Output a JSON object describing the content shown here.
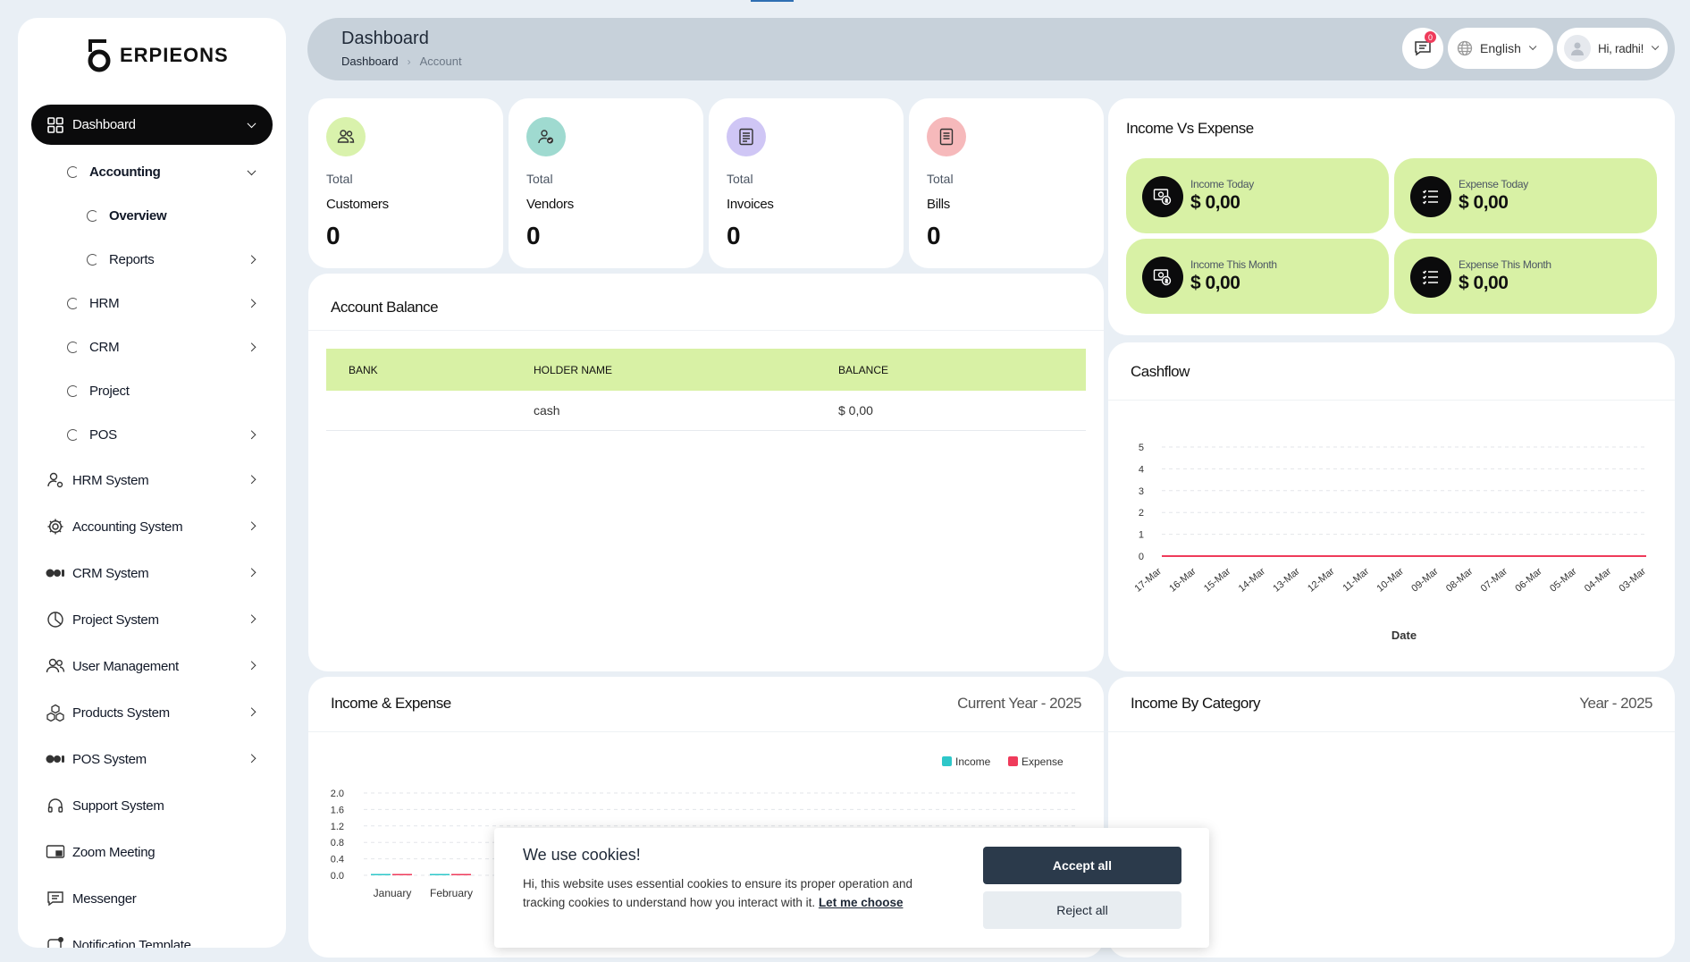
{
  "brand": {
    "name": "ERPIEONS"
  },
  "sidebar": {
    "items": [
      {
        "label": "Dashboard",
        "icon": "grid-icon",
        "active": true
      },
      {
        "label": "Accounting",
        "level": 1,
        "expanded": true
      },
      {
        "label": "Overview",
        "level": 2
      },
      {
        "label": "Reports",
        "level": 2
      },
      {
        "label": "HRM",
        "level": 1
      },
      {
        "label": "CRM",
        "level": 1
      },
      {
        "label": "Project",
        "level": 1
      },
      {
        "label": "POS",
        "level": 1
      },
      {
        "label": "HRM System",
        "icon": "user-gear-icon"
      },
      {
        "label": "Accounting System",
        "icon": "gear-icon"
      },
      {
        "label": "CRM System",
        "icon": "toggle-dots-icon"
      },
      {
        "label": "Project System",
        "icon": "pie-icon"
      },
      {
        "label": "User Management",
        "icon": "users-icon"
      },
      {
        "label": "Products System",
        "icon": "cubes-icon"
      },
      {
        "label": "POS System",
        "icon": "toggle-dots-icon"
      },
      {
        "label": "Support System",
        "icon": "headset-icon"
      },
      {
        "label": "Zoom Meeting",
        "icon": "monitor-icon"
      },
      {
        "label": "Messenger",
        "icon": "chat-icon"
      },
      {
        "label": "Notification Template",
        "icon": "notification-icon"
      }
    ]
  },
  "header": {
    "title": "Dashboard",
    "breadcrumb": [
      "Dashboard",
      "Account"
    ],
    "notifications": "0",
    "language": "English",
    "greeting": "Hi, radhi!"
  },
  "stats": [
    {
      "label": "Total",
      "name": "Customers",
      "value": "0",
      "color": "#d9f2ac"
    },
    {
      "label": "Total",
      "name": "Vendors",
      "value": "0",
      "color": "#9fdad0"
    },
    {
      "label": "Total",
      "name": "Invoices",
      "value": "0",
      "color": "#cfc6f5"
    },
    {
      "label": "Total",
      "name": "Bills",
      "value": "0",
      "color": "#f6b9bb"
    }
  ],
  "income_vs_expense": {
    "title": "Income Vs Expense",
    "tiles": [
      {
        "label": "Income Today",
        "value": "$ 0,00"
      },
      {
        "label": "Expense Today",
        "value": "$ 0,00"
      },
      {
        "label": "Income This Month",
        "value": "$ 0,00"
      },
      {
        "label": "Expense This Month",
        "value": "$ 0,00"
      }
    ]
  },
  "account_balance": {
    "title": "Account Balance",
    "columns": [
      "BANK",
      "HOLDER NAME",
      "BALANCE"
    ],
    "rows": [
      {
        "bank": "",
        "holder": "cash",
        "balance": "$ 0,00"
      }
    ]
  },
  "cashflow": {
    "title": "Cashflow",
    "chart_data": {
      "type": "line",
      "categories": [
        "17-Mar",
        "16-Mar",
        "15-Mar",
        "14-Mar",
        "13-Mar",
        "12-Mar",
        "11-Mar",
        "10-Mar",
        "09-Mar",
        "08-Mar",
        "07-Mar",
        "06-Mar",
        "05-Mar",
        "04-Mar",
        "03-Mar"
      ],
      "series": [
        {
          "values": [
            0,
            0,
            0,
            0,
            0,
            0,
            0,
            0,
            0,
            0,
            0,
            0,
            0,
            0,
            0
          ],
          "color": "#ef3b5b"
        }
      ],
      "xlabel": "Date",
      "ylabel": "",
      "ylim": [
        0,
        5
      ],
      "yticks": [
        0,
        1,
        2,
        3,
        4,
        5
      ],
      "grid": true
    }
  },
  "income_expense": {
    "title": "Income & Expense",
    "subtitle": "Current Year - 2025",
    "chart_data": {
      "type": "bar",
      "categories": [
        "January",
        "February"
      ],
      "series": [
        {
          "name": "Income",
          "values": [
            0,
            0
          ],
          "color": "#2ec7c9"
        },
        {
          "name": "Expense",
          "values": [
            0,
            0
          ],
          "color": "#ef3b5b"
        }
      ],
      "ylim": [
        0,
        2.0
      ],
      "yticks": [
        "0.0",
        "0.4",
        "0.8",
        "1.2",
        "1.6",
        "2.0"
      ],
      "legend": "top-right",
      "grid": true
    }
  },
  "income_by_category": {
    "title": "Income By Category",
    "subtitle": "Year - 2025"
  },
  "cookie": {
    "title": "We use cookies!",
    "text": "Hi, this website uses essential cookies to ensure its proper operation and tracking cookies to understand how you interact with it.",
    "link": "Let me choose",
    "accept": "Accept all",
    "reject": "Reject all"
  }
}
